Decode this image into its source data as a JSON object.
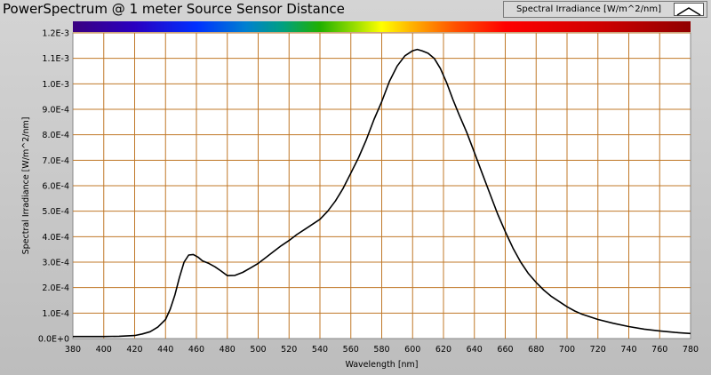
{
  "window": {
    "title": "PowerSpectrum @ 1 meter Source Sensor Distance"
  },
  "legend": {
    "label": "Spectral Irradiance [W/m^2/nm]",
    "icon": "line-swatch-icon"
  },
  "colors": {
    "plot_bg": "#ffffff",
    "grid": "#c07828",
    "series": "#000000"
  },
  "chart_data": {
    "type": "line",
    "title": "PowerSpectrum @ 1 meter Source Sensor Distance",
    "xlabel": "Wavelength [nm]",
    "ylabel": "Spectral Irradiance [W/m^2/nm]",
    "xlim": [
      380,
      780
    ],
    "ylim": [
      0,
      0.0012
    ],
    "grid": true,
    "legend_position": "top-right",
    "color_bar": "visible spectrum 380-780 nm",
    "x_ticks": [
      "380",
      "400",
      "420",
      "440",
      "460",
      "480",
      "500",
      "520",
      "540",
      "560",
      "580",
      "600",
      "620",
      "640",
      "660",
      "680",
      "700",
      "720",
      "740",
      "760",
      "780"
    ],
    "y_ticks": [
      "0.0E+0",
      "1.0E-4",
      "2.0E-4",
      "3.0E-4",
      "4.0E-4",
      "5.0E-4",
      "6.0E-4",
      "7.0E-4",
      "8.0E-4",
      "9.0E-4",
      "1.0E-3",
      "1.1E-3",
      "1.2E-3"
    ],
    "series": [
      {
        "name": "Spectral Irradiance [W/m^2/nm]",
        "x": [
          380,
          390,
          400,
          410,
          420,
          425,
          430,
          435,
          440,
          443,
          446,
          449,
          452,
          455,
          458,
          461,
          464,
          468,
          472,
          476,
          480,
          485,
          490,
          495,
          500,
          505,
          510,
          515,
          520,
          525,
          530,
          535,
          540,
          545,
          550,
          555,
          560,
          565,
          570,
          575,
          580,
          585,
          590,
          595,
          600,
          603,
          606,
          610,
          614,
          618,
          622,
          626,
          630,
          635,
          640,
          645,
          650,
          655,
          660,
          665,
          670,
          675,
          680,
          685,
          690,
          695,
          700,
          705,
          710,
          715,
          720,
          730,
          740,
          750,
          760,
          770,
          780
        ],
        "y": [
          8e-06,
          8e-06,
          8e-06,
          9e-06,
          1.2e-05,
          1.8e-05,
          2.7e-05,
          4.5e-05,
          7.5e-05,
          0.000115,
          0.00017,
          0.00024,
          0.0003,
          0.000328,
          0.00033,
          0.00032,
          0.000305,
          0.000295,
          0.000282,
          0.000265,
          0.000247,
          0.000248,
          0.00026,
          0.000277,
          0.000295,
          0.000318,
          0.000342,
          0.000365,
          0.000385,
          0.000408,
          0.000428,
          0.000448,
          0.000468,
          0.0005,
          0.00054,
          0.00059,
          0.00065,
          0.00071,
          0.00078,
          0.00086,
          0.00093,
          0.00101,
          0.00107,
          0.00111,
          0.00113,
          0.001135,
          0.00113,
          0.00112,
          0.0011,
          0.00106,
          0.001005,
          0.00094,
          0.00088,
          0.00081,
          0.00073,
          0.00065,
          0.00057,
          0.00049,
          0.00042,
          0.000355,
          0.0003,
          0.000255,
          0.00022,
          0.00019,
          0.000165,
          0.000145,
          0.000125,
          0.000108,
          9.5e-05,
          8.5e-05,
          7.5e-05,
          6e-05,
          4.7e-05,
          3.7e-05,
          3e-05,
          2.4e-05,
          2e-05
        ]
      }
    ]
  }
}
